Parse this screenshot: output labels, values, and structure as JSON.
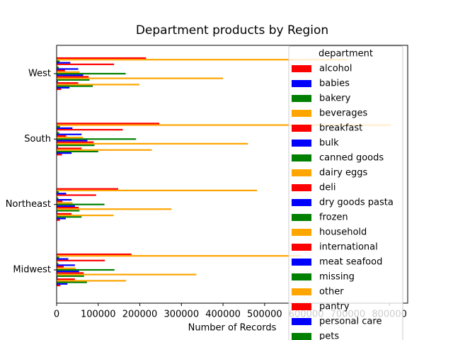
{
  "chart_data": {
    "type": "barh",
    "title": "Department products by Region",
    "x_label": "Number of Records",
    "categories": [
      "Midwest",
      "Northeast",
      "South",
      "West"
    ],
    "xlim": [
      0,
      844000
    ],
    "xticks": [
      0,
      100000,
      200000,
      300000,
      400000,
      500000,
      600000,
      700000,
      800000
    ],
    "legend_title": "department",
    "legend_loc": "upper right",
    "series": [
      {
        "name": "alcohol",
        "color": "#ff0000",
        "values": [
          9000,
          8000,
          13000,
          11000
        ]
      },
      {
        "name": "babies",
        "color": "#0000ff",
        "values": [
          26000,
          22000,
          36000,
          31000
        ]
      },
      {
        "name": "bakery",
        "color": "#008000",
        "values": [
          73000,
          60000,
          100000,
          87000
        ]
      },
      {
        "name": "beverages",
        "color": "#ffa500",
        "values": [
          167000,
          137000,
          229000,
          199000
        ]
      },
      {
        "name": "breakfast",
        "color": "#ff0000",
        "values": [
          44000,
          36000,
          60000,
          52000
        ]
      },
      {
        "name": "bulk",
        "color": "#0000ff",
        "values": [
          2000,
          2000,
          3000,
          3000
        ]
      },
      {
        "name": "canned goods",
        "color": "#008000",
        "values": [
          66000,
          55000,
          91000,
          79000
        ]
      },
      {
        "name": "dairy eggs",
        "color": "#ffa500",
        "values": [
          336000,
          276000,
          460000,
          400000
        ]
      },
      {
        "name": "deli",
        "color": "#ff0000",
        "values": [
          65000,
          53000,
          89000,
          77000
        ]
      },
      {
        "name": "dry goods pasta",
        "color": "#0000ff",
        "values": [
          54000,
          44000,
          74000,
          64000
        ]
      },
      {
        "name": "frozen",
        "color": "#008000",
        "values": [
          139000,
          115000,
          191000,
          166000
        ]
      },
      {
        "name": "household",
        "color": "#ffa500",
        "values": [
          46000,
          38000,
          63000,
          55000
        ]
      },
      {
        "name": "international",
        "color": "#ff0000",
        "values": [
          17000,
          14000,
          23000,
          20000
        ]
      },
      {
        "name": "meat seafood",
        "color": "#0000ff",
        "values": [
          44000,
          36000,
          60000,
          52000
        ]
      },
      {
        "name": "missing",
        "color": "#008000",
        "values": [
          4000,
          4000,
          6000,
          5000
        ]
      },
      {
        "name": "other",
        "color": "#ffa500",
        "values": [
          2000,
          2000,
          3000,
          3000
        ]
      },
      {
        "name": "pantry",
        "color": "#ff0000",
        "values": [
          116000,
          95000,
          159000,
          138000
        ]
      },
      {
        "name": "personal care",
        "color": "#0000ff",
        "values": [
          28000,
          23000,
          38000,
          33000
        ]
      },
      {
        "name": "pets",
        "color": "#008000",
        "values": [
          6000,
          5000,
          8000,
          7000
        ]
      },
      {
        "color": "#ffa500",
        "values": [
          587000,
          482000,
          804000,
          700000
        ]
      },
      {
        "color": "#ff0000",
        "values": [
          180000,
          148000,
          247000,
          215000
        ]
      }
    ]
  }
}
